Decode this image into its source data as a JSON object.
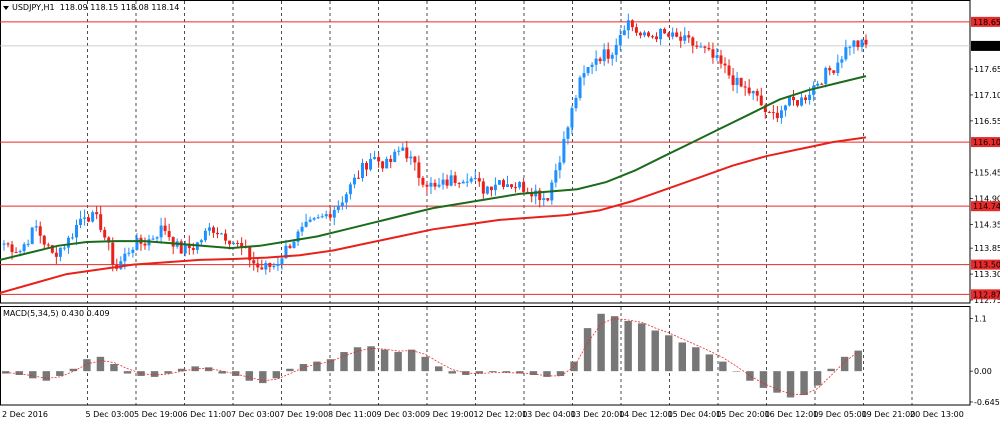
{
  "header": {
    "symbol": "USDJPY,H1",
    "ohlc": "118.09 118.15 118.08 118.14"
  },
  "macd_header": {
    "label": "MACD(5,34,5) 0.430 0.409"
  },
  "colors": {
    "bull": "#1e90ff",
    "bear": "#e8211a",
    "ma_fast": "#1a6b1a",
    "ma_slow": "#e8211a",
    "level_line": "#e82a2a",
    "macd_hist": "#777777",
    "macd_signal": "#e82a2a",
    "grid": "#000000"
  },
  "chart_data": [
    {
      "type": "candlestick",
      "title": "USDJPY,H1",
      "ylim": [
        112.75,
        119.05
      ],
      "y_ticks": [
        "118.65",
        "118.14",
        "117.65",
        "117.10",
        "116.55",
        "116.10",
        "115.45",
        "114.90",
        "114.74",
        "114.35",
        "113.85",
        "113.50",
        "113.30",
        "112.87",
        "112.75"
      ],
      "x_ticks": [
        "2 Dec 2016",
        "5 Dec 03:00",
        "5 Dec 19:00",
        "6 Dec 11:00",
        "7 Dec 03:00",
        "7 Dec 19:00",
        "8 Dec 11:00",
        "9 Dec 03:00",
        "9 Dec 19:00",
        "12 Dec 12:00",
        "13 Dec 04:00",
        "13 Dec 20:00",
        "14 Dec 12:00",
        "15 Dec 04:00",
        "15 Dec 20:00",
        "16 Dec 12:00",
        "19 Dec 05:00",
        "19 Dec 21:00",
        "20 Dec 13:00"
      ],
      "horizontal_levels": [
        {
          "price": "118.65",
          "highlighted": true
        },
        {
          "price": "116.10",
          "highlighted": true
        },
        {
          "price": "114.74",
          "highlighted": true
        },
        {
          "price": "113.50",
          "highlighted": true
        },
        {
          "price": "112.87",
          "highlighted": true
        }
      ],
      "current_price": "118.14",
      "close_path": [
        113.95,
        113.8,
        114.3,
        113.7,
        114.0,
        114.6,
        114.4,
        113.4,
        113.9,
        114.0,
        114.3,
        113.8,
        113.9,
        114.3,
        114.1,
        113.8,
        113.4,
        113.5,
        114.0,
        114.3,
        114.5,
        114.8,
        115.3,
        115.8,
        115.6,
        116.0,
        115.4,
        115.1,
        115.3,
        115.4,
        115.1,
        115.3,
        115.2,
        115.1,
        114.9,
        116.0,
        117.3,
        117.9,
        118.0,
        118.7,
        118.3,
        118.4,
        118.3,
        118.2,
        118.0,
        117.7,
        117.3,
        117.1,
        116.6,
        116.9,
        117.0,
        117.4,
        117.7,
        118.2,
        118.14
      ],
      "series": [
        {
          "name": "",
          "kind": "moving_average",
          "values": [
            113.6,
            113.75,
            113.9,
            113.98,
            114.0,
            114.0,
            113.95,
            113.9,
            113.85,
            113.9,
            114.0,
            114.1,
            114.25,
            114.4,
            114.55,
            114.7,
            114.8,
            114.9,
            115.0,
            115.05,
            115.1,
            115.25,
            115.5,
            115.8,
            116.1,
            116.4,
            116.7,
            117.0,
            117.2,
            117.35,
            117.5
          ]
        },
        {
          "name": "",
          "kind": "moving_average",
          "values": [
            112.9,
            113.1,
            113.3,
            113.4,
            113.5,
            113.55,
            113.6,
            113.62,
            113.65,
            113.7,
            113.8,
            113.95,
            114.1,
            114.25,
            114.35,
            114.45,
            114.5,
            114.55,
            114.65,
            114.85,
            115.1,
            115.35,
            115.6,
            115.8,
            115.95,
            116.1,
            116.2
          ]
        }
      ]
    },
    {
      "type": "bar",
      "title": "MACD(5,34,5) 0.430 0.409",
      "ylim": [
        -0.645,
        1.3
      ],
      "y_ticks": [
        "1.1",
        "0.00",
        "-0.645"
      ],
      "series": [
        {
          "name": "MACD",
          "values": [
            -0.05,
            -0.08,
            -0.15,
            -0.2,
            -0.1,
            0.05,
            0.25,
            0.3,
            0.15,
            -0.05,
            -0.1,
            -0.12,
            -0.05,
            0.05,
            0.1,
            0.08,
            -0.05,
            -0.1,
            -0.2,
            -0.25,
            -0.15,
            0.05,
            0.15,
            0.2,
            0.25,
            0.4,
            0.5,
            0.52,
            0.45,
            0.4,
            0.45,
            0.3,
            0.1,
            -0.05,
            -0.08,
            -0.05,
            -0.02,
            -0.03,
            -0.05,
            -0.08,
            -0.12,
            -0.1,
            0.2,
            0.9,
            1.2,
            1.15,
            1.05,
            1.0,
            0.85,
            0.75,
            0.6,
            0.5,
            0.35,
            0.2,
            0.0,
            -0.2,
            -0.35,
            -0.45,
            -0.55,
            -0.5,
            -0.3,
            0.05,
            0.3,
            0.43
          ]
        },
        {
          "name": "Signal",
          "values": [
            -0.03,
            -0.05,
            -0.1,
            -0.15,
            -0.12,
            0.0,
            0.15,
            0.22,
            0.18,
            0.05,
            -0.05,
            -0.08,
            -0.06,
            0.0,
            0.05,
            0.06,
            0.0,
            -0.06,
            -0.13,
            -0.2,
            -0.17,
            -0.05,
            0.08,
            0.15,
            0.2,
            0.32,
            0.42,
            0.48,
            0.46,
            0.42,
            0.43,
            0.35,
            0.18,
            0.03,
            -0.04,
            -0.05,
            -0.03,
            -0.03,
            -0.04,
            -0.06,
            -0.1,
            -0.1,
            0.1,
            0.6,
            1.0,
            1.1,
            1.07,
            1.02,
            0.9,
            0.8,
            0.67,
            0.55,
            0.42,
            0.28,
            0.1,
            -0.1,
            -0.26,
            -0.38,
            -0.48,
            -0.49,
            -0.36,
            -0.08,
            0.2,
            0.409
          ]
        }
      ]
    }
  ]
}
